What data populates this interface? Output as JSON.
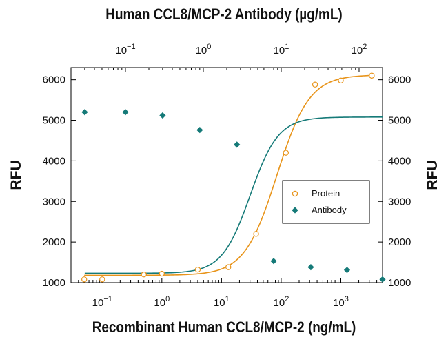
{
  "chart_data": {
    "type": "scatter",
    "title": "Human CCL8/MCP-2 Antibody (µg/mL)",
    "xlabel": "Recombinant Human CCL8/MCP-2 (ng/mL)",
    "ylabel": "RFU",
    "ylabel_right": "RFU",
    "x_scale": "log",
    "xlim": [
      0.03,
      5000
    ],
    "ylim": [
      1000,
      6300
    ],
    "yticks": [
      1000,
      2000,
      3000,
      4000,
      5000,
      6000
    ],
    "bottom_xticks": [
      0.1,
      1,
      10,
      100,
      1000
    ],
    "bottom_xtick_labels": [
      {
        "base": "10",
        "exp": "−1"
      },
      {
        "base": "10",
        "exp": "0"
      },
      {
        "base": "10",
        "exp": "1"
      },
      {
        "base": "10",
        "exp": "2"
      },
      {
        "base": "10",
        "exp": "3"
      }
    ],
    "top_axis": {
      "label": "Human CCL8/MCP-2 Antibody (µg/mL)",
      "scale": "log",
      "xlim": [
        0.02,
        200
      ],
      "xticks": [
        0.1,
        1,
        10,
        100
      ],
      "xtick_labels": [
        {
          "base": "10",
          "exp": "−1"
        },
        {
          "base": "10",
          "exp": "0"
        },
        {
          "base": "10",
          "exp": "1"
        },
        {
          "base": "10",
          "exp": "2"
        }
      ]
    },
    "grid": false,
    "legend_position": "center-right",
    "series": [
      {
        "name": "Protein",
        "axis": "bottom",
        "marker": "open-circle",
        "color": "#E8941A",
        "x": [
          0.05,
          0.1,
          0.5,
          1,
          4,
          13,
          38,
          120,
          370,
          1000,
          3300
        ],
        "y": [
          1080,
          1080,
          1200,
          1220,
          1320,
          1380,
          2200,
          4200,
          5880,
          5980,
          6100
        ],
        "fit": {
          "bottom": 1180,
          "top": 6120,
          "ec50": 85,
          "hill": 1.6
        }
      },
      {
        "name": "Antibody",
        "axis": "top",
        "marker": "filled-diamond",
        "color": "#157A78",
        "x": [
          0.03,
          0.1,
          0.3,
          0.9,
          2.7,
          8,
          24,
          70,
          200
        ],
        "y": [
          5200,
          5200,
          5120,
          4760,
          4400,
          1530,
          1380,
          1310,
          1080
        ],
        "fit": {
          "bottom": 1230,
          "top": 5080,
          "ec50": 4.0,
          "hill": 2.4
        }
      }
    ]
  }
}
